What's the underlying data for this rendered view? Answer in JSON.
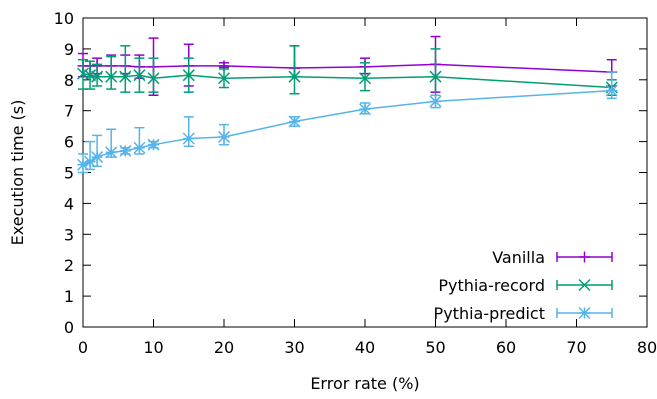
{
  "chart_data": {
    "type": "line",
    "title": "",
    "xlabel": "Error rate (%)",
    "ylabel": "Execution time (s)",
    "xlim": [
      0,
      80
    ],
    "ylim": [
      0,
      10
    ],
    "xticks": [
      0,
      10,
      20,
      30,
      40,
      50,
      60,
      70,
      80
    ],
    "yticks": [
      0,
      1,
      2,
      3,
      4,
      5,
      6,
      7,
      8,
      9,
      10
    ],
    "grid": false,
    "legend_position": "bottom-right",
    "series": [
      {
        "name": "Vanilla",
        "color": "#9400d3",
        "marker": "plus",
        "x": [
          0,
          1,
          2,
          4,
          6,
          8,
          10,
          15,
          20,
          30,
          40,
          50,
          75
        ],
        "y": [
          8.45,
          8.45,
          8.45,
          8.45,
          8.45,
          8.42,
          8.42,
          8.45,
          8.45,
          8.38,
          8.42,
          8.5,
          8.25
        ],
        "y_low": [
          8.1,
          8.1,
          8.2,
          8.1,
          8.2,
          8.05,
          7.5,
          7.8,
          8.4,
          8.1,
          8.2,
          7.6,
          7.8
        ],
        "y_high": [
          8.85,
          8.6,
          8.7,
          8.8,
          8.8,
          8.8,
          9.35,
          9.15,
          8.55,
          9.1,
          8.7,
          9.4,
          8.65
        ]
      },
      {
        "name": "Pythia-record",
        "color": "#009e73",
        "marker": "x",
        "x": [
          0,
          1,
          2,
          4,
          6,
          8,
          10,
          15,
          20,
          30,
          40,
          50,
          75
        ],
        "y": [
          8.2,
          8.15,
          8.1,
          8.1,
          8.1,
          8.15,
          8.05,
          8.15,
          8.05,
          8.1,
          8.05,
          8.1,
          7.75
        ],
        "y_low": [
          7.7,
          7.7,
          7.8,
          7.7,
          7.6,
          7.6,
          7.6,
          7.6,
          7.75,
          7.55,
          7.65,
          7.5,
          7.5
        ],
        "y_high": [
          8.65,
          8.6,
          8.5,
          8.75,
          9.1,
          8.7,
          8.7,
          8.7,
          8.35,
          9.1,
          8.55,
          9.0,
          8.0
        ]
      },
      {
        "name": "Pythia-predict",
        "color": "#56b4e9",
        "marker": "star",
        "x": [
          0,
          1,
          2,
          4,
          6,
          8,
          10,
          15,
          20,
          30,
          40,
          50,
          75
        ],
        "y": [
          5.25,
          5.35,
          5.5,
          5.65,
          5.7,
          5.8,
          5.9,
          6.1,
          6.15,
          6.65,
          7.05,
          7.3,
          7.65
        ],
        "y_low": [
          5.0,
          5.1,
          5.2,
          5.5,
          5.6,
          5.6,
          5.8,
          5.85,
          5.9,
          6.5,
          6.9,
          7.1,
          7.4
        ],
        "y_high": [
          5.6,
          6.0,
          6.2,
          6.4,
          5.8,
          6.45,
          6.0,
          6.8,
          6.55,
          6.8,
          7.25,
          7.5,
          8.25
        ]
      }
    ]
  }
}
